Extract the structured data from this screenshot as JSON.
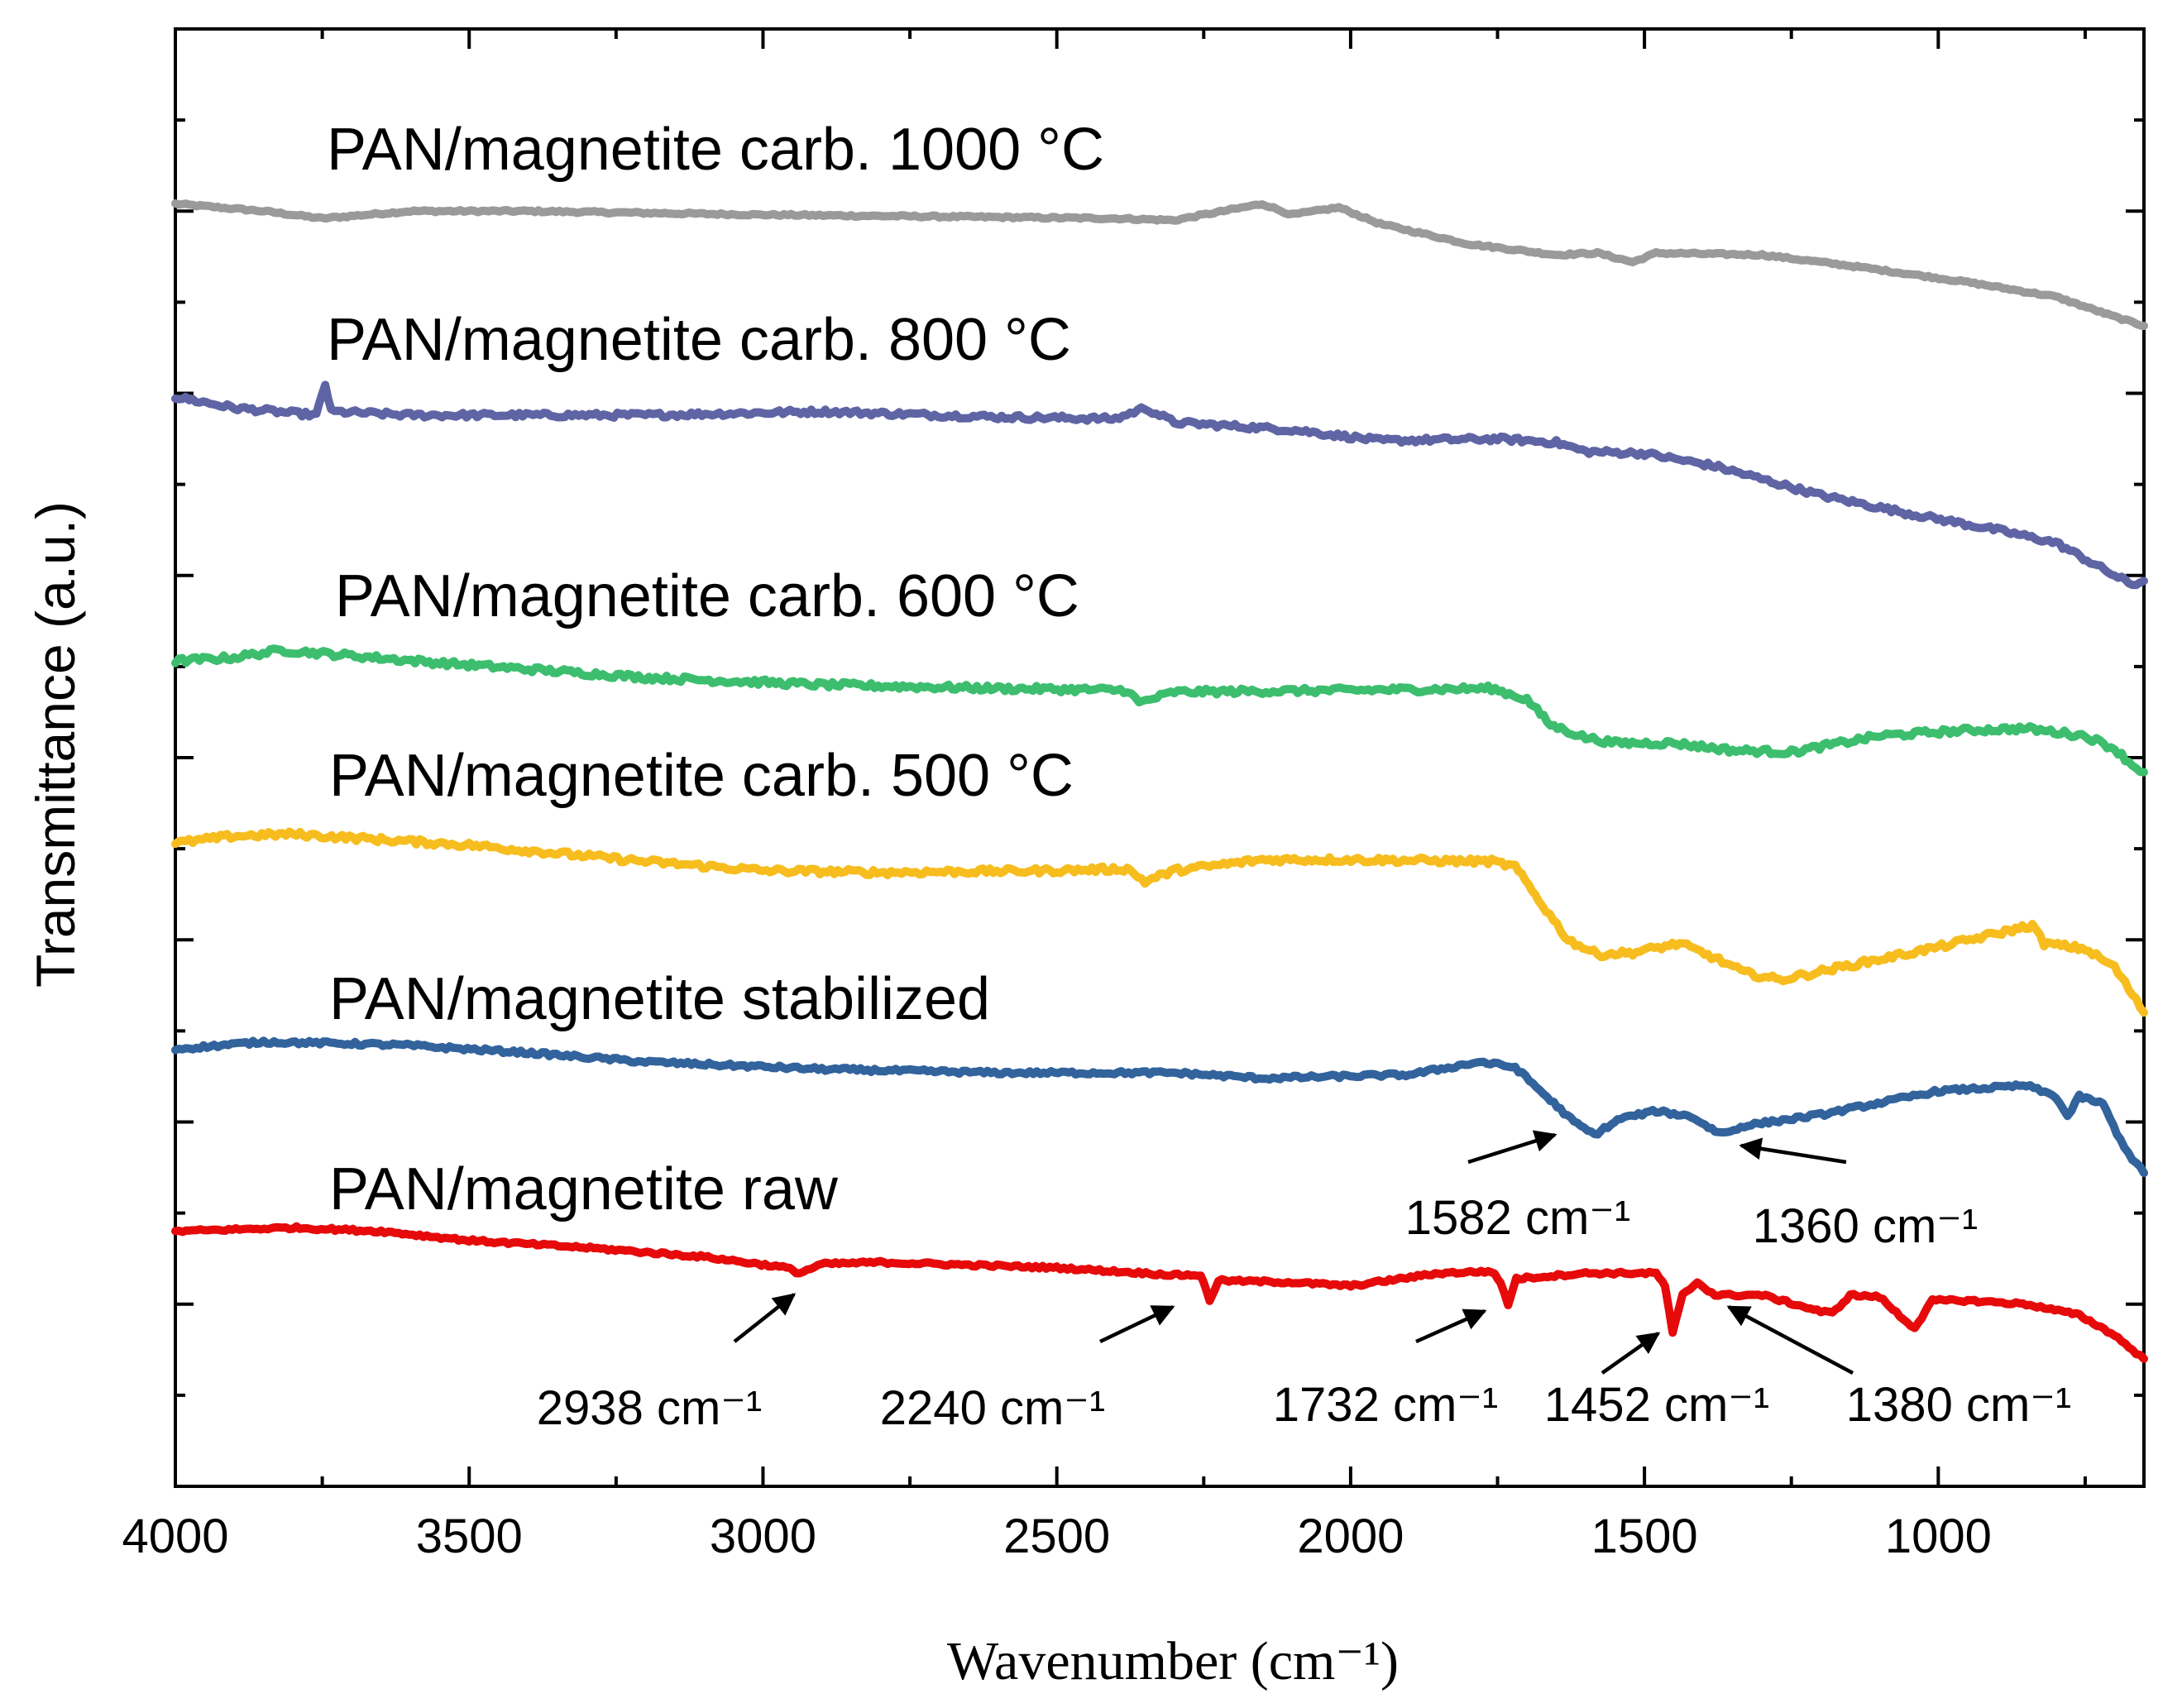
{
  "chart_data": {
    "type": "line",
    "title": "",
    "xlabel": "Wavenumber (cm⁻¹)",
    "ylabel": "Transmittance (a.u.)",
    "xlim": [
      4000,
      650
    ],
    "ylim": [
      0,
      8
    ],
    "x_reversed": true,
    "x_ticks": [
      4000,
      3500,
      3000,
      2500,
      2000,
      1500,
      1000
    ],
    "y_tick_labels_shown": false,
    "grid": false,
    "series": [
      {
        "name": "PAN/magnetite carb. 1000 °C",
        "color": "#9a9a9a",
        "points": [
          [
            4000,
            7.04
          ],
          [
            3850,
            7.0
          ],
          [
            3750,
            6.96
          ],
          [
            3600,
            7.0
          ],
          [
            3400,
            7.0
          ],
          [
            3000,
            6.98
          ],
          [
            2700,
            6.97
          ],
          [
            2400,
            6.96
          ],
          [
            2300,
            6.95
          ],
          [
            2150,
            7.04
          ],
          [
            2100,
            6.98
          ],
          [
            2020,
            7.02
          ],
          [
            1950,
            6.93
          ],
          [
            1800,
            6.82
          ],
          [
            1650,
            6.76
          ],
          [
            1580,
            6.77
          ],
          [
            1520,
            6.72
          ],
          [
            1480,
            6.77
          ],
          [
            1300,
            6.76
          ],
          [
            1150,
            6.7
          ],
          [
            950,
            6.61
          ],
          [
            800,
            6.53
          ],
          [
            700,
            6.42
          ],
          [
            650,
            6.37
          ]
        ]
      },
      {
        "name": "PAN/magnetite carb. 800 °C",
        "color": "#5f64a4",
        "points": [
          [
            4000,
            5.98
          ],
          [
            3900,
            5.92
          ],
          [
            3760,
            5.88
          ],
          [
            3745,
            6.05
          ],
          [
            3735,
            5.9
          ],
          [
            3600,
            5.88
          ],
          [
            3200,
            5.88
          ],
          [
            2900,
            5.9
          ],
          [
            2600,
            5.87
          ],
          [
            2400,
            5.86
          ],
          [
            2350,
            5.92
          ],
          [
            2300,
            5.84
          ],
          [
            2100,
            5.8
          ],
          [
            1950,
            5.74
          ],
          [
            1750,
            5.75
          ],
          [
            1650,
            5.73
          ],
          [
            1600,
            5.68
          ],
          [
            1500,
            5.67
          ],
          [
            1380,
            5.6
          ],
          [
            1200,
            5.44
          ],
          [
            1050,
            5.34
          ],
          [
            900,
            5.25
          ],
          [
            800,
            5.18
          ],
          [
            700,
            5.0
          ],
          [
            670,
            4.95
          ],
          [
            650,
            4.97
          ]
        ]
      },
      {
        "name": "PAN/magnetite carb. 600 °C",
        "color": "#3cbe6e",
        "points": [
          [
            4000,
            4.53
          ],
          [
            3900,
            4.55
          ],
          [
            3820,
            4.59
          ],
          [
            3700,
            4.56
          ],
          [
            3550,
            4.52
          ],
          [
            3200,
            4.44
          ],
          [
            2900,
            4.4
          ],
          [
            2600,
            4.38
          ],
          [
            2380,
            4.37
          ],
          [
            2360,
            4.3
          ],
          [
            2300,
            4.36
          ],
          [
            2000,
            4.37
          ],
          [
            1760,
            4.38
          ],
          [
            1700,
            4.32
          ],
          [
            1660,
            4.18
          ],
          [
            1600,
            4.11
          ],
          [
            1550,
            4.08
          ],
          [
            1450,
            4.08
          ],
          [
            1350,
            4.04
          ],
          [
            1250,
            4.03
          ],
          [
            1100,
            4.12
          ],
          [
            950,
            4.15
          ],
          [
            850,
            4.16
          ],
          [
            750,
            4.12
          ],
          [
            700,
            4.05
          ],
          [
            670,
            3.96
          ],
          [
            650,
            3.92
          ]
        ]
      },
      {
        "name": "PAN/magnetite carb. 500 °C",
        "color": "#f7bd1e",
        "points": [
          [
            4000,
            3.53
          ],
          [
            3900,
            3.57
          ],
          [
            3800,
            3.58
          ],
          [
            3650,
            3.55
          ],
          [
            3500,
            3.52
          ],
          [
            3200,
            3.43
          ],
          [
            3000,
            3.38
          ],
          [
            2800,
            3.37
          ],
          [
            2500,
            3.38
          ],
          [
            2380,
            3.39
          ],
          [
            2350,
            3.32
          ],
          [
            2300,
            3.38
          ],
          [
            2150,
            3.44
          ],
          [
            2000,
            3.44
          ],
          [
            1760,
            3.43
          ],
          [
            1720,
            3.4
          ],
          [
            1680,
            3.22
          ],
          [
            1630,
            3.0
          ],
          [
            1580,
            2.92
          ],
          [
            1520,
            2.93
          ],
          [
            1440,
            2.98
          ],
          [
            1380,
            2.9
          ],
          [
            1330,
            2.82
          ],
          [
            1270,
            2.78
          ],
          [
            1150,
            2.86
          ],
          [
            1000,
            2.96
          ],
          [
            880,
            3.05
          ],
          [
            840,
            3.08
          ],
          [
            820,
            2.98
          ],
          [
            750,
            2.95
          ],
          [
            700,
            2.85
          ],
          [
            670,
            2.7
          ],
          [
            650,
            2.6
          ]
        ]
      },
      {
        "name": "PAN/magnetite stabilized",
        "color": "#32639c",
        "points": [
          [
            4000,
            2.4
          ],
          [
            3850,
            2.44
          ],
          [
            3700,
            2.43
          ],
          [
            3600,
            2.42
          ],
          [
            3400,
            2.38
          ],
          [
            3200,
            2.33
          ],
          [
            2900,
            2.29
          ],
          [
            2600,
            2.27
          ],
          [
            2300,
            2.27
          ],
          [
            2150,
            2.24
          ],
          [
            1900,
            2.26
          ],
          [
            1780,
            2.33
          ],
          [
            1720,
            2.3
          ],
          [
            1660,
            2.12
          ],
          [
            1620,
            2.0
          ],
          [
            1585,
            1.93
          ],
          [
            1540,
            2.02
          ],
          [
            1480,
            2.06
          ],
          [
            1420,
            2.03
          ],
          [
            1380,
            1.95
          ],
          [
            1360,
            1.94
          ],
          [
            1330,
            1.98
          ],
          [
            1200,
            2.04
          ],
          [
            1000,
            2.17
          ],
          [
            850,
            2.2
          ],
          [
            800,
            2.14
          ],
          [
            780,
            2.03
          ],
          [
            760,
            2.14
          ],
          [
            720,
            2.1
          ],
          [
            690,
            1.9
          ],
          [
            670,
            1.8
          ],
          [
            650,
            1.72
          ]
        ]
      },
      {
        "name": "PAN/magnetite raw",
        "color": "#e60a0a",
        "points": [
          [
            4000,
            1.4
          ],
          [
            3800,
            1.42
          ],
          [
            3650,
            1.4
          ],
          [
            3500,
            1.35
          ],
          [
            3300,
            1.31
          ],
          [
            3100,
            1.26
          ],
          [
            2960,
            1.2
          ],
          [
            2938,
            1.17
          ],
          [
            2900,
            1.22
          ],
          [
            2800,
            1.23
          ],
          [
            2500,
            1.2
          ],
          [
            2300,
            1.16
          ],
          [
            2255,
            1.16
          ],
          [
            2240,
            1.02
          ],
          [
            2225,
            1.13
          ],
          [
            2100,
            1.12
          ],
          [
            2000,
            1.1
          ],
          [
            1850,
            1.17
          ],
          [
            1760,
            1.18
          ],
          [
            1745,
            1.12
          ],
          [
            1732,
            1.0
          ],
          [
            1718,
            1.14
          ],
          [
            1600,
            1.17
          ],
          [
            1480,
            1.17
          ],
          [
            1465,
            1.1
          ],
          [
            1452,
            0.84
          ],
          [
            1435,
            1.05
          ],
          [
            1410,
            1.12
          ],
          [
            1380,
            1.05
          ],
          [
            1300,
            1.05
          ],
          [
            1200,
            0.96
          ],
          [
            1180,
            0.95
          ],
          [
            1150,
            1.05
          ],
          [
            1100,
            1.04
          ],
          [
            1060,
            0.92
          ],
          [
            1040,
            0.87
          ],
          [
            1010,
            1.02
          ],
          [
            950,
            1.02
          ],
          [
            850,
            1.0
          ],
          [
            760,
            0.94
          ],
          [
            700,
            0.83
          ],
          [
            670,
            0.75
          ],
          [
            650,
            0.7
          ]
        ]
      }
    ],
    "annotations": [
      {
        "label": "2938 cm⁻¹",
        "x": 2938
      },
      {
        "label": "2240 cm⁻¹",
        "x": 2240
      },
      {
        "label": "1732 cm⁻¹",
        "x": 1732
      },
      {
        "label": "1452 cm⁻¹",
        "x": 1452
      },
      {
        "label": "1380 cm⁻¹",
        "x": 1380
      },
      {
        "label": "1582 cm⁻¹",
        "x": 1582
      },
      {
        "label": "1360 cm⁻¹",
        "x": 1360
      }
    ]
  }
}
